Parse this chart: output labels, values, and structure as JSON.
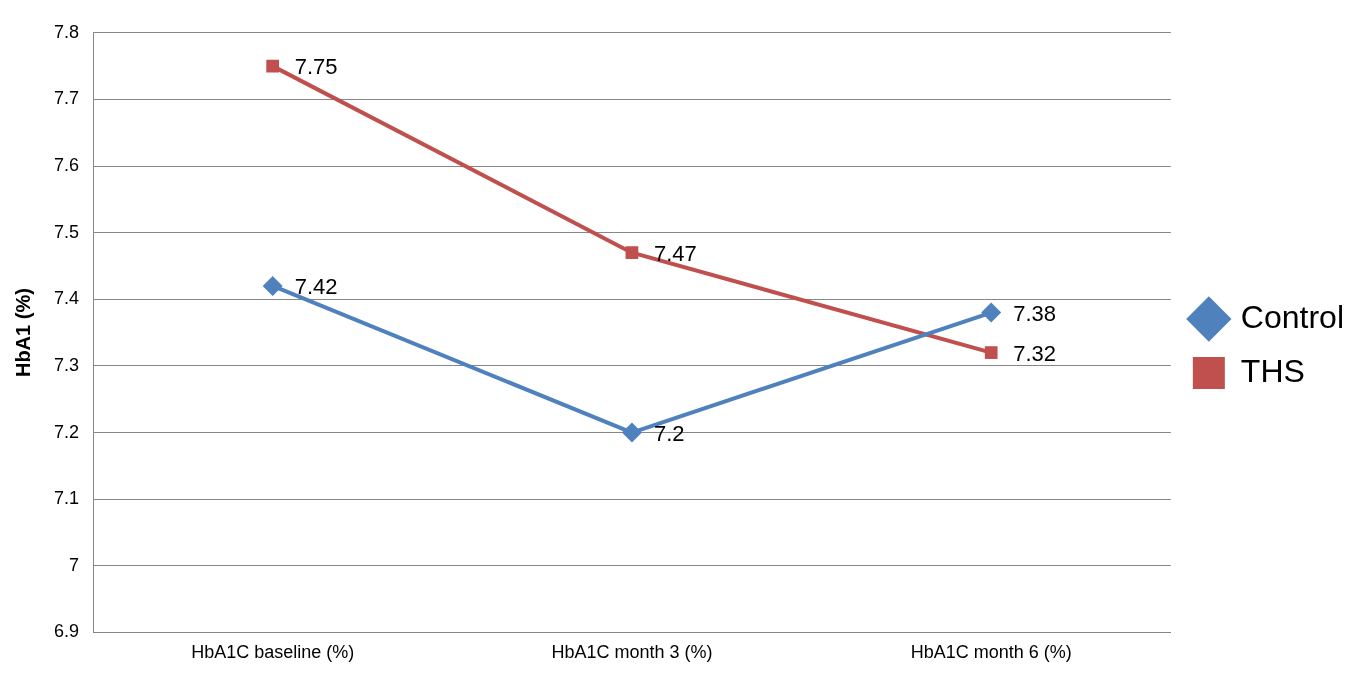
{
  "chart_data": {
    "type": "line",
    "ylabel": "HbA1 (%)",
    "categories": [
      "HbA1C baseline (%)",
      "HbA1C month 3 (%)",
      "HbA1C month 6 (%)"
    ],
    "series": [
      {
        "name": "Control",
        "color": "#4f81bd",
        "values": [
          7.42,
          7.2,
          7.38
        ],
        "marker": "diamond"
      },
      {
        "name": "THS",
        "color": "#c0504d",
        "values": [
          7.75,
          7.47,
          7.32
        ],
        "marker": "square"
      }
    ],
    "ylim": [
      6.9,
      7.8
    ],
    "yticks": [
      6.9,
      7,
      7.1,
      7.2,
      7.3,
      7.4,
      7.5,
      7.6,
      7.7,
      7.8
    ],
    "grid": "y",
    "legend": "right",
    "data_labels": true,
    "line_style": "solid"
  }
}
